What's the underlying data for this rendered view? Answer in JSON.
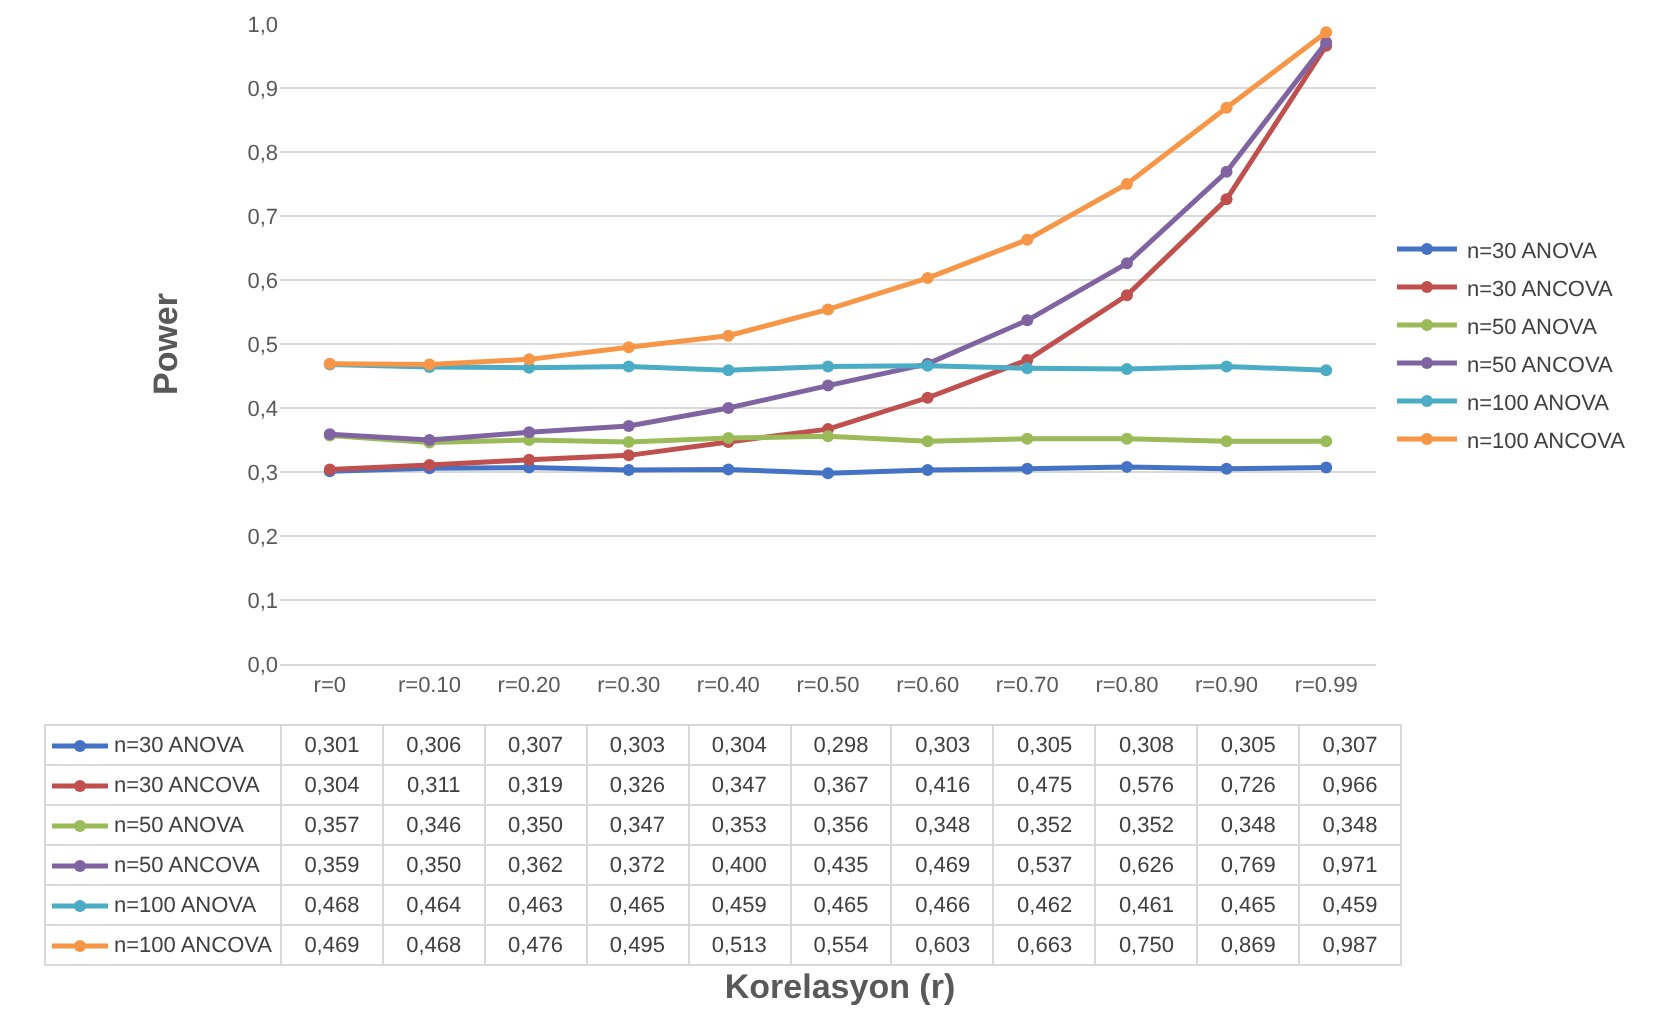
{
  "chart_data": {
    "type": "line",
    "annotations": [
      "Korelasyon (r)"
    ],
    "ylabel": "Power",
    "categories": [
      "r=0",
      "r=0.10",
      "r=0.20",
      "r=0.30",
      "r=0.40",
      "r=0.50",
      "r=0.60",
      "r=0.70",
      "r=0.80",
      "r=0.90",
      "r=0.99"
    ],
    "ylim": [
      0,
      1
    ],
    "yticks": [
      {
        "value": 0,
        "label": "0,0"
      },
      {
        "value": 0.1,
        "label": "0,1"
      },
      {
        "value": 0.2,
        "label": "0,2"
      },
      {
        "value": 0.3,
        "label": "0,3"
      },
      {
        "value": 0.4,
        "label": "0,4"
      },
      {
        "value": 0.5,
        "label": "0,5"
      },
      {
        "value": 0.6,
        "label": "0,6"
      },
      {
        "value": 0.7,
        "label": "0,7"
      },
      {
        "value": 0.8,
        "label": "0,8"
      },
      {
        "value": 0.9,
        "label": "0,9"
      },
      {
        "value": 1,
        "label": "1,0"
      }
    ],
    "grid": "y",
    "legend": "right",
    "marker": "circle",
    "line_style": "solid",
    "series": [
      {
        "name": "n=30 ANOVA",
        "color": "#4472c4",
        "values": [
          0.301,
          0.306,
          0.307,
          0.303,
          0.304,
          0.298,
          0.303,
          0.305,
          0.308,
          0.305,
          0.307
        ],
        "value_labels": [
          "0,301",
          "0,306",
          "0,307",
          "0,303",
          "0,304",
          "0,298",
          "0,303",
          "0,305",
          "0,308",
          "0,305",
          "0,307"
        ]
      },
      {
        "name": "n=30 ANCOVA",
        "color": "#c0504d",
        "values": [
          0.304,
          0.311,
          0.319,
          0.326,
          0.347,
          0.367,
          0.416,
          0.475,
          0.576,
          0.726,
          0.966
        ],
        "value_labels": [
          "0,304",
          "0,311",
          "0,319",
          "0,326",
          "0,347",
          "0,367",
          "0,416",
          "0,475",
          "0,576",
          "0,726",
          "0,966"
        ]
      },
      {
        "name": "n=50 ANOVA",
        "color": "#9bbb59",
        "values": [
          0.357,
          0.346,
          0.35,
          0.347,
          0.353,
          0.356,
          0.348,
          0.352,
          0.352,
          0.348,
          0.348
        ],
        "value_labels": [
          "0,357",
          "0,346",
          "0,350",
          "0,347",
          "0,353",
          "0,356",
          "0,348",
          "0,352",
          "0,352",
          "0,348",
          "0,348"
        ]
      },
      {
        "name": "n=50 ANCOVA",
        "color": "#8064a2",
        "values": [
          0.359,
          0.35,
          0.362,
          0.372,
          0.4,
          0.435,
          0.469,
          0.537,
          0.626,
          0.769,
          0.971
        ],
        "value_labels": [
          "0,359",
          "0,350",
          "0,362",
          "0,372",
          "0,400",
          "0,435",
          "0,469",
          "0,537",
          "0,626",
          "0,769",
          "0,971"
        ]
      },
      {
        "name": "n=100 ANOVA",
        "color": "#4bacc6",
        "values": [
          0.468,
          0.464,
          0.463,
          0.465,
          0.459,
          0.465,
          0.466,
          0.462,
          0.461,
          0.465,
          0.459
        ],
        "value_labels": [
          "0,468",
          "0,464",
          "0,463",
          "0,465",
          "0,459",
          "0,465",
          "0,466",
          "0,462",
          "0,461",
          "0,465",
          "0,459"
        ]
      },
      {
        "name": "n=100 ANCOVA",
        "color": "#f79646",
        "values": [
          0.469,
          0.468,
          0.476,
          0.495,
          0.513,
          0.554,
          0.603,
          0.663,
          0.75,
          0.869,
          0.987
        ],
        "value_labels": [
          "0,469",
          "0,468",
          "0,476",
          "0,495",
          "0,513",
          "0,554",
          "0,603",
          "0,663",
          "0,750",
          "0,869",
          "0,987"
        ]
      }
    ]
  }
}
